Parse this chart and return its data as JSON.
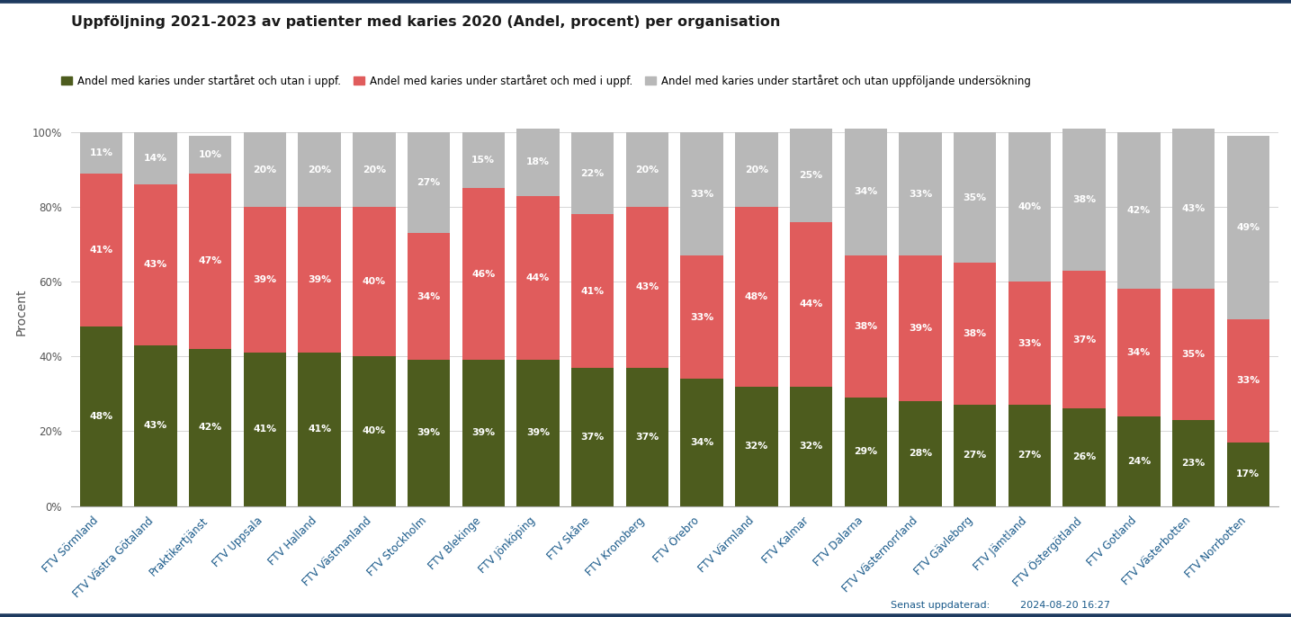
{
  "title": "Uppföljning 2021-2023 av patienter med karies 2020 (Andel, procent) per organisation",
  "ylabel": "Procent",
  "categories": [
    "FTV Sörmland",
    "FTV Västra Götaland",
    "Praktikertjänst",
    "FTV Uppsala",
    "FTV Halland",
    "FTV Västmanland",
    "FTV Stockholm",
    "FTV Blekinge",
    "FTV Jönköping",
    "FTV Skåne",
    "FTV Kronoberg",
    "FTV Örebro",
    "FTV Värmland",
    "FTV Kalmar",
    "FTV Dalarna",
    "FTV Västernorrland",
    "FTV Gävleborg",
    "FTV Jämtland",
    "FTV Östergötland",
    "FTV Gotland",
    "FTV Västerbotten",
    "FTV Norrbotten"
  ],
  "green_values": [
    48,
    43,
    42,
    41,
    41,
    40,
    39,
    39,
    39,
    37,
    37,
    34,
    32,
    32,
    29,
    28,
    27,
    27,
    26,
    24,
    23,
    17
  ],
  "red_values": [
    41,
    43,
    47,
    39,
    39,
    40,
    34,
    46,
    44,
    41,
    43,
    33,
    48,
    44,
    38,
    39,
    38,
    33,
    37,
    34,
    35,
    33
  ],
  "gray_values": [
    11,
    14,
    10,
    20,
    20,
    20,
    27,
    15,
    18,
    22,
    20,
    33,
    20,
    25,
    34,
    33,
    35,
    40,
    38,
    42,
    43,
    49
  ],
  "green_color": "#4d5c1e",
  "red_color": "#e05c5c",
  "gray_color": "#b8b8b8",
  "legend_labels": [
    "Andel med karies under startåret och utan i uppf.",
    "Andel med karies under startåret och med i uppf.",
    "Andel med karies under startåret och utan uppföljande undersökning"
  ],
  "footer_label": "Senast uppdaterad:",
  "footer_date": "2024-08-20 16:27",
  "bg_color": "#ffffff",
  "title_color": "#1a1a1a",
  "tick_color": "#1a5a8a",
  "axis_label_color": "#555555",
  "border_color": "#1e3a5f",
  "yticks": [
    0,
    20,
    40,
    60,
    80,
    100
  ],
  "ylim": [
    0,
    104
  ],
  "bar_width": 0.78,
  "label_fontsize": 7.8,
  "tick_fontsize": 8.5,
  "title_fontsize": 11.5,
  "legend_fontsize": 8.5,
  "ylabel_fontsize": 10
}
